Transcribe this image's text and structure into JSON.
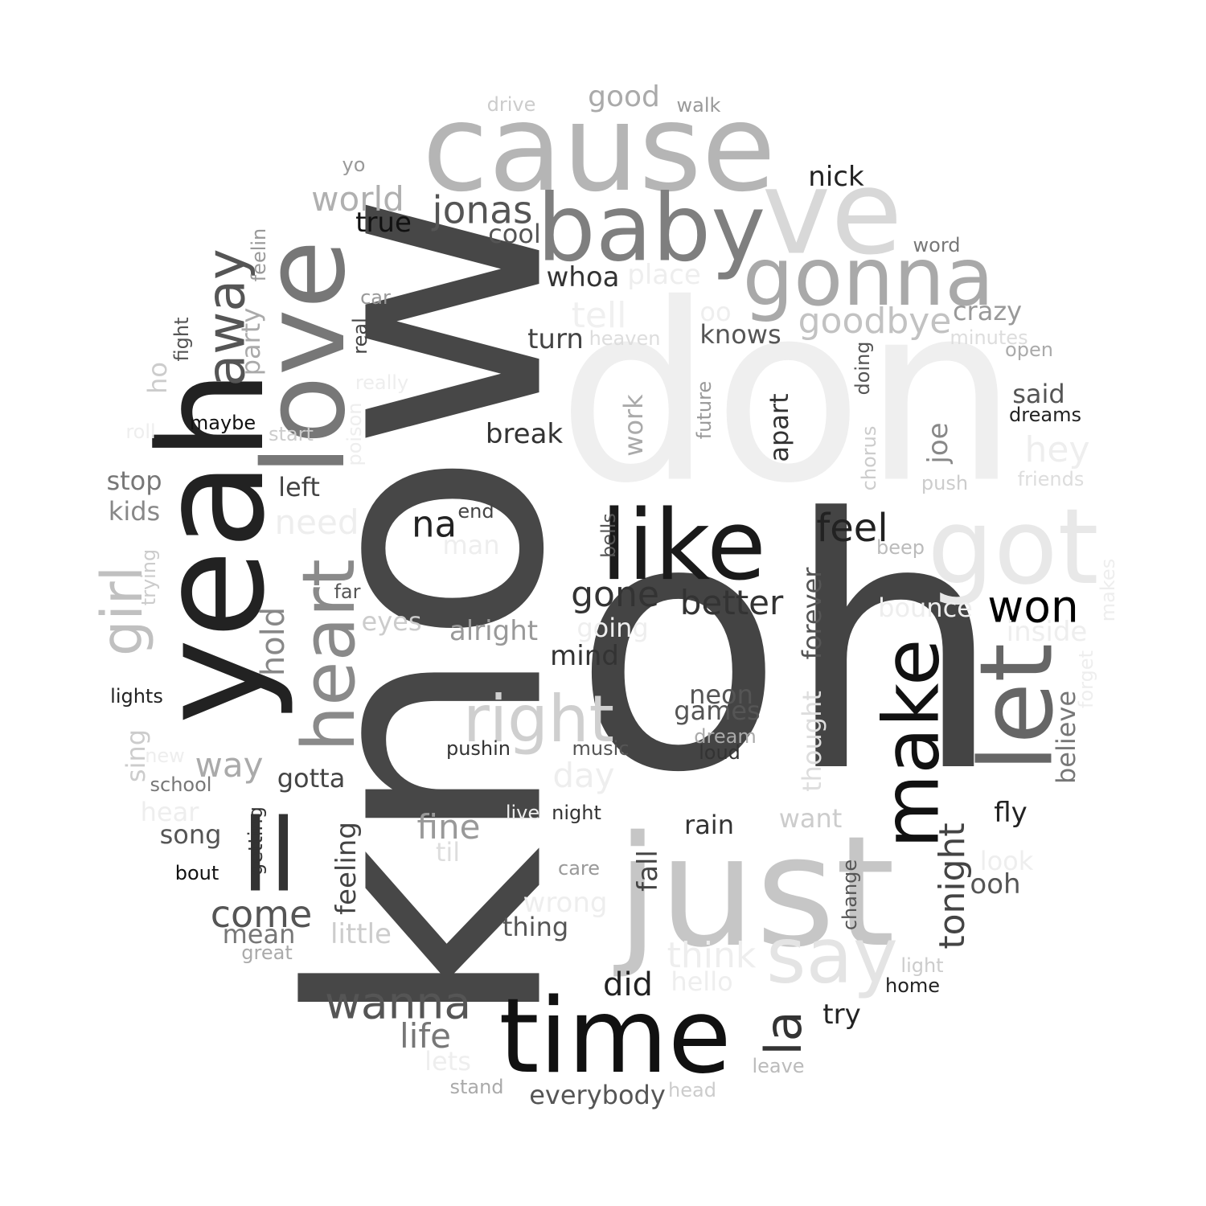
{
  "words": [
    {
      "text": "know",
      "color": "#474747"
    },
    {
      "text": "oh",
      "color": "#444444"
    },
    {
      "text": "don",
      "color": "#efefef"
    },
    {
      "text": "cause",
      "color": "#b5b5b5"
    },
    {
      "text": "yeah",
      "color": "#222222"
    },
    {
      "text": "just",
      "color": "#c6c6c6"
    },
    {
      "text": "time",
      "color": "#111111"
    },
    {
      "text": "love",
      "color": "#777777"
    },
    {
      "text": "baby",
      "color": "#7f7f7f"
    },
    {
      "text": "ve",
      "color": "#d8d8d8"
    },
    {
      "text": "like",
      "color": "#1a1a1a"
    },
    {
      "text": "got",
      "color": "#e8e8e8"
    },
    {
      "text": "gonna",
      "color": "#a9a9a9"
    },
    {
      "text": "ll",
      "color": "#333333"
    },
    {
      "text": "heart",
      "color": "#8a8a8a"
    },
    {
      "text": "let",
      "color": "#666666"
    },
    {
      "text": "make",
      "color": "#111111"
    },
    {
      "text": "say",
      "color": "#e4e4e4"
    },
    {
      "text": "right",
      "color": "#cfcfcf"
    },
    {
      "text": "away",
      "color": "#555555"
    },
    {
      "text": "girl",
      "color": "#c0c0c0"
    },
    {
      "text": "won",
      "color": "#000000"
    },
    {
      "text": "wanna",
      "color": "#555555"
    },
    {
      "text": "la",
      "color": "#333333"
    },
    {
      "text": "feel",
      "color": "#222222"
    },
    {
      "text": "world",
      "color": "#b0b0b0"
    },
    {
      "text": "jonas",
      "color": "#555555"
    },
    {
      "text": "goodbye",
      "color": "#c2c2c2"
    },
    {
      "text": "na",
      "color": "#222222"
    },
    {
      "text": "come",
      "color": "#555555"
    },
    {
      "text": "gone",
      "color": "#333333"
    },
    {
      "text": "better",
      "color": "#333333"
    },
    {
      "text": "tonight",
      "color": "#444444"
    },
    {
      "text": "nick",
      "color": "#222222"
    },
    {
      "text": "true",
      "color": "#111111"
    },
    {
      "text": "whoa",
      "color": "#333333"
    },
    {
      "text": "tell",
      "color": "#f0f0f0"
    },
    {
      "text": "place",
      "color": "#eeeeee"
    },
    {
      "text": "cool",
      "color": "#555555"
    },
    {
      "text": "good",
      "color": "#aaaaaa"
    },
    {
      "text": "drive",
      "color": "#cccccc"
    },
    {
      "text": "walk",
      "color": "#999999"
    },
    {
      "text": "yo",
      "color": "#999999"
    },
    {
      "text": "word",
      "color": "#777777"
    },
    {
      "text": "crazy",
      "color": "#999999"
    },
    {
      "text": "oo",
      "color": "#eeeeee"
    },
    {
      "text": "knows",
      "color": "#555555"
    },
    {
      "text": "turn",
      "color": "#444444"
    },
    {
      "text": "heaven",
      "color": "#dddddd"
    },
    {
      "text": "minutes",
      "color": "#dddddd"
    },
    {
      "text": "open",
      "color": "#aaaaaa"
    },
    {
      "text": "doing",
      "color": "#555555"
    },
    {
      "text": "said",
      "color": "#555555"
    },
    {
      "text": "dreams",
      "color": "#222222"
    },
    {
      "text": "hey",
      "color": "#eeeeee"
    },
    {
      "text": "friends",
      "color": "#dddddd"
    },
    {
      "text": "push",
      "color": "#cccccc"
    },
    {
      "text": "beep",
      "color": "#bbbbbb"
    },
    {
      "text": "joe",
      "color": "#888888"
    },
    {
      "text": "chorus",
      "color": "#cccccc"
    },
    {
      "text": "apart",
      "color": "#333333"
    },
    {
      "text": "future",
      "color": "#999999"
    },
    {
      "text": "work",
      "color": "#aaaaaa"
    },
    {
      "text": "break",
      "color": "#333333"
    },
    {
      "text": "car",
      "color": "#999999"
    },
    {
      "text": "real",
      "color": "#444444"
    },
    {
      "text": "really",
      "color": "#eeeeee"
    },
    {
      "text": "poison",
      "color": "#eeeeee"
    },
    {
      "text": "start",
      "color": "#cccccc"
    },
    {
      "text": "maybe",
      "color": "#111111"
    },
    {
      "text": "roll",
      "color": "#eeeeee"
    },
    {
      "text": "fight",
      "color": "#555555"
    },
    {
      "text": "party",
      "color": "#aaaaaa"
    },
    {
      "text": "feelin",
      "color": "#999999"
    },
    {
      "text": "ho",
      "color": "#cccccc"
    },
    {
      "text": "stop",
      "color": "#777777"
    },
    {
      "text": "kids",
      "color": "#888888"
    },
    {
      "text": "left",
      "color": "#444444"
    },
    {
      "text": "need",
      "color": "#eeeeee"
    },
    {
      "text": "end",
      "color": "#444444"
    },
    {
      "text": "man",
      "color": "#eeeeee"
    },
    {
      "text": "bells",
      "color": "#555555"
    },
    {
      "text": "trying",
      "color": "#cccccc"
    },
    {
      "text": "far",
      "color": "#555555"
    },
    {
      "text": "eyes",
      "color": "#cccccc"
    },
    {
      "text": "alright",
      "color": "#999999"
    },
    {
      "text": "going",
      "color": "#eeeeee"
    },
    {
      "text": "mind",
      "color": "#333333"
    },
    {
      "text": "hold",
      "color": "#888888"
    },
    {
      "text": "lights",
      "color": "#222222"
    },
    {
      "text": "sing",
      "color": "#cccccc"
    },
    {
      "text": "new",
      "color": "#eeeeee"
    },
    {
      "text": "school",
      "color": "#777777"
    },
    {
      "text": "way",
      "color": "#aaaaaa"
    },
    {
      "text": "gotta",
      "color": "#444444"
    },
    {
      "text": "pushin",
      "color": "#333333"
    },
    {
      "text": "music",
      "color": "#555555"
    },
    {
      "text": "day",
      "color": "#eeeeee"
    },
    {
      "text": "neon",
      "color": "#555555"
    },
    {
      "text": "games",
      "color": "#555555"
    },
    {
      "text": "dream",
      "color": "#aaaaaa"
    },
    {
      "text": "loud",
      "color": "#333333"
    },
    {
      "text": "thought",
      "color": "#dddddd"
    },
    {
      "text": "forever",
      "color": "#555555"
    },
    {
      "text": "bounce",
      "color": "#eeeeee"
    },
    {
      "text": "inside",
      "color": "#eeeeee"
    },
    {
      "text": "makes",
      "color": "#eeeeee"
    },
    {
      "text": "forget",
      "color": "#eeeeee"
    },
    {
      "text": "believe",
      "color": "#777777"
    },
    {
      "text": "hear",
      "color": "#eeeeee"
    },
    {
      "text": "song",
      "color": "#555555"
    },
    {
      "text": "getting",
      "color": "#333333"
    },
    {
      "text": "bout",
      "color": "#111111"
    },
    {
      "text": "feeling",
      "color": "#444444"
    },
    {
      "text": "fine",
      "color": "#999999"
    },
    {
      "text": "til",
      "color": "#dddddd"
    },
    {
      "text": "live",
      "color": "#eeeeee"
    },
    {
      "text": "night",
      "color": "#333333"
    },
    {
      "text": "rain",
      "color": "#333333"
    },
    {
      "text": "want",
      "color": "#cccccc"
    },
    {
      "text": "fly",
      "color": "#222222"
    },
    {
      "text": "look",
      "color": "#eeeeee"
    },
    {
      "text": "ooh",
      "color": "#555555"
    },
    {
      "text": "change",
      "color": "#555555"
    },
    {
      "text": "care",
      "color": "#999999"
    },
    {
      "text": "fall",
      "color": "#444444"
    },
    {
      "text": "wrong",
      "color": "#eeeeee"
    },
    {
      "text": "thing",
      "color": "#555555"
    },
    {
      "text": "think",
      "color": "#eeeeee"
    },
    {
      "text": "hello",
      "color": "#eeeeee"
    },
    {
      "text": "light",
      "color": "#cccccc"
    },
    {
      "text": "home",
      "color": "#222222"
    },
    {
      "text": "did",
      "color": "#222222"
    },
    {
      "text": "try",
      "color": "#222222"
    },
    {
      "text": "mean",
      "color": "#777777"
    },
    {
      "text": "little",
      "color": "#cccccc"
    },
    {
      "text": "great",
      "color": "#aaaaaa"
    },
    {
      "text": "life",
      "color": "#777777"
    },
    {
      "text": "lets",
      "color": "#eeeeee"
    },
    {
      "text": "stand",
      "color": "#aaaaaa"
    },
    {
      "text": "everybody",
      "color": "#555555"
    },
    {
      "text": "head",
      "color": "#cccccc"
    },
    {
      "text": "leave",
      "color": "#bbbbbb"
    }
  ]
}
